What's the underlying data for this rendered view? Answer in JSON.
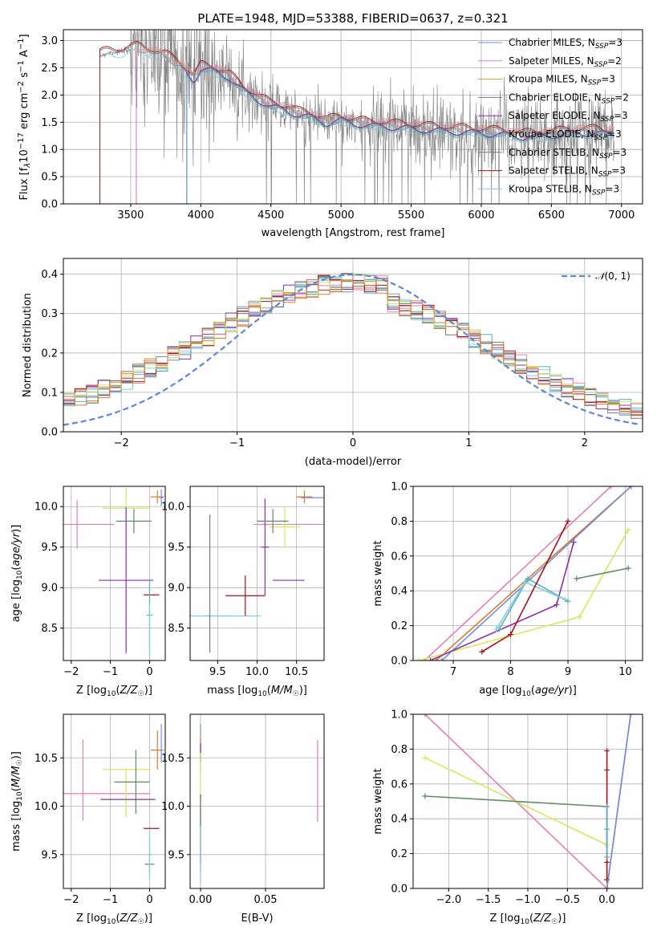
{
  "page": {
    "title": "PLATE=1948, MJD=53388, FIBERID=0637, z=0.321"
  },
  "colors": {
    "chabrier_miles": "#6f8fd8",
    "salpeter_miles": "#e37fb9",
    "kroupa_miles": "#cf9b38",
    "chabrier_elodie": "#5f8a66",
    "salpeter_elodie": "#8c2fa8",
    "kroupa_elodie": "#5ab0c4",
    "chabrier_stelib": "#777777",
    "salpeter_stelib": "#a8101a",
    "kroupa_stelib": "#7fd0d8",
    "lime": "#d7e85a",
    "orange": "#de7a33",
    "gauss": "#5b87d6",
    "data": "#808080"
  },
  "chart_data": [
    {
      "id": "spectrum",
      "type": "line",
      "title": "PLATE=1948, MJD=53388, FIBERID=0637, z=0.321",
      "xlabel": "wavelength [Angstrom, rest frame]",
      "ylabel": "Flux [f_λ 10^-17 erg cm^-2 s^-1 A^-1]",
      "xlim": [
        3020,
        7150
      ],
      "ylim": [
        0,
        3.2
      ],
      "xticks": [
        3500,
        4000,
        4500,
        5000,
        5500,
        6000,
        6500,
        7000
      ],
      "yticks": [
        0.0,
        0.5,
        1.0,
        1.5,
        2.0,
        2.5,
        3.0
      ],
      "legend_position": "top-right",
      "legend": [
        {
          "label": "Chabrier MILES, N",
          "sub": "SSP",
          "suffix": "=3",
          "color_key": "chabrier_miles"
        },
        {
          "label": "Salpeter MILES, N",
          "sub": "SSP",
          "suffix": "=2",
          "color_key": "salpeter_miles"
        },
        {
          "label": "Kroupa MILES, N",
          "sub": "SSP",
          "suffix": "=3",
          "color_key": "kroupa_miles"
        },
        {
          "label": "Chabrier ELODIE, N",
          "sub": "SSP",
          "suffix": "=2",
          "color_key": "chabrier_elodie"
        },
        {
          "label": "Salpeter ELODIE, N",
          "sub": "SSP",
          "suffix": "=3",
          "color_key": "salpeter_elodie"
        },
        {
          "label": "Kroupa ELODIE, N",
          "sub": "SSP",
          "suffix": "=3",
          "color_key": "kroupa_elodie"
        },
        {
          "label": "Chabrier STELIB, N",
          "sub": "SSP",
          "suffix": "=3",
          "color_key": "chabrier_stelib"
        },
        {
          "label": "Salpeter STELIB, N",
          "sub": "SSP",
          "suffix": "=3",
          "color_key": "salpeter_stelib"
        },
        {
          "label": "Kroupa STELIB, N",
          "sub": "SSP",
          "suffix": "=3",
          "color_key": "kroupa_stelib"
        }
      ],
      "model_continuum": [
        [
          3280,
          2.72
        ],
        [
          3350,
          2.78
        ],
        [
          3450,
          2.8
        ],
        [
          3550,
          2.85
        ],
        [
          3650,
          2.78
        ],
        [
          3750,
          2.7
        ],
        [
          3850,
          2.55
        ],
        [
          3950,
          2.3
        ],
        [
          4000,
          2.5
        ],
        [
          4100,
          2.45
        ],
        [
          4200,
          2.35
        ],
        [
          4300,
          2.1
        ],
        [
          4400,
          1.95
        ],
        [
          4500,
          1.8
        ],
        [
          4600,
          1.75
        ],
        [
          4700,
          1.65
        ],
        [
          4800,
          1.6
        ],
        [
          4900,
          1.5
        ],
        [
          5000,
          1.55
        ],
        [
          5100,
          1.5
        ],
        [
          5200,
          1.45
        ],
        [
          5300,
          1.45
        ],
        [
          5400,
          1.42
        ],
        [
          5500,
          1.4
        ],
        [
          5600,
          1.38
        ],
        [
          5700,
          1.36
        ],
        [
          5800,
          1.35
        ],
        [
          5900,
          1.33
        ],
        [
          6000,
          1.32
        ],
        [
          6100,
          1.3
        ],
        [
          6200,
          1.28
        ],
        [
          6300,
          1.25
        ],
        [
          6400,
          1.25
        ],
        [
          6500,
          1.28
        ],
        [
          6600,
          1.3
        ],
        [
          6700,
          1.32
        ],
        [
          6800,
          1.32
        ],
        [
          6900,
          1.3
        ]
      ],
      "model_start": {
        "chabrier_miles": 3540,
        "salpeter_miles": 3540,
        "kroupa_miles": 3540,
        "chabrier_elodie": 3900,
        "salpeter_elodie": 3900,
        "kroupa_elodie": 3900,
        "chabrier_stelib": 3280,
        "salpeter_stelib": 3280,
        "kroupa_stelib": 3280
      },
      "data_range": [
        3280,
        6950
      ]
    },
    {
      "id": "residuals",
      "type": "line",
      "xlabel": "(data-model)/error",
      "ylabel": "Normed distribution",
      "xlim": [
        -2.5,
        2.5
      ],
      "ylim": [
        0,
        0.44
      ],
      "xticks": [
        -2,
        -1,
        0,
        1,
        2
      ],
      "yticks": [
        0.0,
        0.1,
        0.2,
        0.3,
        0.4
      ],
      "legend_position": "top-right",
      "gauss_label": "N(0,1)",
      "bin_width": 0.1
    },
    {
      "id": "age_vs_Z",
      "type": "scatter",
      "xlabel": "Z [log10(Z/Z☉)]",
      "ylabel": "age  [log10(age/yr)]",
      "xlim": [
        -2.2,
        0.4
      ],
      "ylim": [
        8.1,
        10.25
      ],
      "xticks": [
        -2,
        -1,
        0
      ],
      "yticks": [
        8.5,
        9.0,
        9.5,
        10.0
      ],
      "points": [
        {
          "x": -1.85,
          "xerr": 0.95,
          "y": 9.78,
          "yerr": 0.3,
          "color_key": "salpeter_miles"
        },
        {
          "x": -0.6,
          "xerr": 0.6,
          "y": 9.98,
          "yerr": 0.25,
          "color_key": "lime"
        },
        {
          "x": -0.4,
          "xerr": 0.45,
          "y": 9.82,
          "yerr": 0.15,
          "color_key": "chabrier_elodie"
        },
        {
          "x": -0.6,
          "xerr": 0.7,
          "y": 9.09,
          "yerr": 0.9,
          "color_key": "salpeter_elodie"
        },
        {
          "x": 0.2,
          "xerr": 0.17,
          "y": 10.12,
          "yerr": 0.08,
          "color_key": "orange"
        },
        {
          "x": 0.3,
          "xerr": 0.05,
          "y": 10.11,
          "yerr": 0.1,
          "color_key": "chabrier_miles"
        },
        {
          "x": 0.05,
          "xerr": 0.2,
          "y": 8.91,
          "yerr": 0.0,
          "color_key": "salpeter_stelib"
        },
        {
          "x": 0.0,
          "xerr": 0.08,
          "y": 8.66,
          "yerr": 0.45,
          "color_key": "kroupa_elodie"
        },
        {
          "x": 0.0,
          "xerr": 0.02,
          "y": 8.3,
          "yerr": 0.5,
          "color_key": "kroupa_stelib"
        }
      ]
    },
    {
      "id": "age_vs_mass",
      "type": "scatter",
      "xlabel": "mass [log10(M/M☉)]",
      "ylabel": "",
      "xlim": [
        9.15,
        10.85
      ],
      "ylim": [
        8.1,
        10.25
      ],
      "xticks": [
        9.5,
        10.0,
        10.5
      ],
      "yticks": [
        8.5,
        9.0,
        9.5,
        10.0
      ],
      "points": [
        {
          "x": 9.5,
          "xerr": 0.15,
          "y": 8.65,
          "yerr": 0.0,
          "color_key": "kroupa_elodie"
        },
        {
          "x": 9.6,
          "xerr": 0.45,
          "y": 8.65,
          "yerr": 0.0,
          "color_key": "kroupa_stelib"
        },
        {
          "x": 9.4,
          "xerr": 0.0,
          "y": 9.05,
          "yerr": 0.85,
          "color_key": "chabrier_stelib"
        },
        {
          "x": 9.85,
          "xerr": 0.25,
          "y": 8.9,
          "yerr": 0.25,
          "color_key": "salpeter_stelib"
        },
        {
          "x": 10.4,
          "xerr": 0.45,
          "y": 9.78,
          "yerr": 0.0,
          "color_key": "salpeter_miles"
        },
        {
          "x": 10.1,
          "xerr": 0.05,
          "y": 9.5,
          "yerr": 0.6,
          "color_key": "salpeter_elodie"
        },
        {
          "x": 10.4,
          "xerr": 0.2,
          "y": 9.09,
          "yerr": 0.0,
          "color_key": "salpeter_elodie"
        },
        {
          "x": 10.35,
          "xerr": 0.2,
          "y": 9.75,
          "yerr": 0.25,
          "color_key": "lime"
        },
        {
          "x": 10.2,
          "xerr": 0.2,
          "y": 9.82,
          "yerr": 0.15,
          "color_key": "chabrier_elodie"
        },
        {
          "x": 10.6,
          "xerr": 0.1,
          "y": 10.12,
          "yerr": 0.08,
          "color_key": "orange"
        },
        {
          "x": 10.7,
          "xerr": 0.15,
          "y": 10.11,
          "yerr": 0.0,
          "color_key": "chabrier_miles"
        }
      ]
    },
    {
      "id": "mw_vs_age",
      "type": "line",
      "xlabel": "age  [log10(age/yr)]",
      "ylabel": "mass weight",
      "xlim": [
        6.3,
        10.3
      ],
      "ylim": [
        0,
        1.0
      ],
      "xticks": [
        7,
        8,
        9,
        10
      ],
      "yticks": [
        0.0,
        0.2,
        0.4,
        0.6,
        0.8,
        1.0
      ],
      "series": [
        {
          "color_key": "salpeter_miles",
          "x": [
            6.5,
            9.75
          ],
          "y": [
            0.0,
            1.0
          ]
        },
        {
          "color_key": "orange",
          "x": [
            6.7,
            10.1
          ],
          "y": [
            0.0,
            1.0
          ]
        },
        {
          "color_key": "chabrier_miles",
          "x": [
            6.8,
            10.1
          ],
          "y": [
            0.0,
            1.0
          ]
        },
        {
          "color_key": "lime",
          "x": [
            6.4,
            9.2,
            10.05
          ],
          "y": [
            0.0,
            0.25,
            0.75
          ]
        },
        {
          "color_key": "chabrier_elodie",
          "x": [
            9.15,
            10.05
          ],
          "y": [
            0.47,
            0.53
          ]
        },
        {
          "color_key": "salpeter_elodie",
          "x": [
            6.6,
            8.8,
            9.1
          ],
          "y": [
            0.0,
            0.32,
            0.68
          ]
        },
        {
          "color_key": "kroupa_elodie",
          "x": [
            7.8,
            8.3,
            9.0
          ],
          "y": [
            0.18,
            0.47,
            0.34
          ]
        },
        {
          "color_key": "kroupa_stelib",
          "x": [
            7.75,
            8.25,
            8.95
          ],
          "y": [
            0.18,
            0.45,
            0.35
          ]
        },
        {
          "color_key": "salpeter_stelib",
          "x": [
            7.5,
            8.0,
            9.0
          ],
          "y": [
            0.05,
            0.15,
            0.8
          ]
        }
      ]
    },
    {
      "id": "mass_vs_Z",
      "type": "scatter",
      "xlabel": "Z [log10(Z/Z☉)]",
      "ylabel": "mass [log10(M/M☉)]",
      "xlim": [
        -2.2,
        0.4
      ],
      "ylim": [
        9.15,
        10.95
      ],
      "xticks": [
        -2,
        -1,
        0
      ],
      "yticks": [
        9.5,
        10.0,
        10.5
      ],
      "points": [
        {
          "x": -1.15,
          "xerr": 1.15,
          "y": 10.13,
          "yerr": 0.0,
          "color_key": "salpeter_miles"
        },
        {
          "x": -1.7,
          "xerr": 0.0,
          "y": 10.27,
          "yerr": 0.42,
          "color_key": "salpeter_miles"
        },
        {
          "x": -0.6,
          "xerr": 0.6,
          "y": 10.38,
          "yerr": 0.0,
          "color_key": "lime"
        },
        {
          "x": -0.6,
          "xerr": 0.0,
          "y": 10.14,
          "yerr": 0.25,
          "color_key": "lime"
        },
        {
          "x": -0.45,
          "xerr": 0.45,
          "y": 10.25,
          "yerr": 0.0,
          "color_key": "chabrier_elodie"
        },
        {
          "x": -0.35,
          "xerr": 0.0,
          "y": 10.25,
          "yerr": 0.33,
          "color_key": "chabrier_elodie"
        },
        {
          "x": -0.55,
          "xerr": 0.7,
          "y": 10.07,
          "yerr": 0.0,
          "color_key": "salpeter_elodie"
        },
        {
          "x": 0.2,
          "xerr": 0.17,
          "y": 10.58,
          "yerr": 0.2,
          "color_key": "orange"
        },
        {
          "x": 0.3,
          "xerr": 0.0,
          "y": 10.65,
          "yerr": 0.2,
          "color_key": "chabrier_miles"
        },
        {
          "x": 0.05,
          "xerr": 0.2,
          "y": 9.77,
          "yerr": 0.0,
          "color_key": "salpeter_stelib"
        },
        {
          "x": 0.0,
          "xerr": 0.12,
          "y": 9.4,
          "yerr": 0.0,
          "color_key": "chabrier_stelib"
        },
        {
          "x": 0.0,
          "xerr": 0.0,
          "y": 9.4,
          "yerr": 0.1,
          "color_key": "kroupa_elodie"
        },
        {
          "x": 0.0,
          "xerr": 0.05,
          "y": 9.5,
          "yerr": 0.25,
          "color_key": "kroupa_stelib"
        }
      ]
    },
    {
      "id": "mass_vs_EBV",
      "type": "scatter",
      "xlabel": "E(B-V)",
      "ylabel": "",
      "xlim": [
        -0.008,
        0.095
      ],
      "ylim": [
        9.15,
        10.95
      ],
      "xticks": [
        0.0,
        0.05
      ],
      "yticks": [
        9.5,
        10.0,
        10.5
      ],
      "points": [
        {
          "x": 0.09,
          "xerr": 0.0,
          "y": 10.26,
          "yerr": 0.42,
          "color_key": "salpeter_miles"
        },
        {
          "x": 0.0,
          "xerr": 0.0,
          "y": 10.65,
          "yerr": 0.2,
          "color_key": "chabrier_miles"
        },
        {
          "x": 0.0,
          "xerr": 0.0,
          "y": 10.58,
          "yerr": 0.12,
          "color_key": "orange"
        },
        {
          "x": 0.0,
          "xerr": 0.0,
          "y": 10.5,
          "yerr": 0.15,
          "color_key": "salpeter_elodie"
        },
        {
          "x": 0.0,
          "xerr": 0.0,
          "y": 10.3,
          "yerr": 0.25,
          "color_key": "lime"
        },
        {
          "x": 0.0,
          "xerr": 0.0,
          "y": 9.77,
          "yerr": 0.35,
          "color_key": "salpeter_stelib"
        },
        {
          "x": 0.0,
          "xerr": 0.0,
          "y": 9.7,
          "yerr": 0.4,
          "color_key": "chabrier_elodie"
        },
        {
          "x": 0.0,
          "xerr": 0.0,
          "y": 9.5,
          "yerr": 0.3,
          "color_key": "kroupa_stelib"
        }
      ]
    },
    {
      "id": "mw_vs_Z",
      "type": "line",
      "xlabel": "Z [log10(Z/Z☉)]",
      "ylabel": "mass weight",
      "xlim": [
        -2.45,
        0.45
      ],
      "ylim": [
        0,
        1.0
      ],
      "xticks": [
        -2.0,
        -1.5,
        -1.0,
        -0.5,
        0.0
      ],
      "yticks": [
        0.0,
        0.2,
        0.4,
        0.6,
        0.8,
        1.0
      ],
      "series": [
        {
          "color_key": "salpeter_miles",
          "x": [
            -2.3,
            0.0
          ],
          "y": [
            1.0,
            0.0
          ]
        },
        {
          "color_key": "lime",
          "x": [
            -2.3,
            0.0,
            0.0
          ],
          "y": [
            0.75,
            0.25,
            0.0
          ]
        },
        {
          "color_key": "chabrier_elodie",
          "x": [
            -2.3,
            0.0
          ],
          "y": [
            0.53,
            0.47
          ]
        },
        {
          "color_key": "salpeter_stelib",
          "x": [
            0.0,
            0.0,
            0.0,
            0.0
          ],
          "y": [
            0.05,
            0.15,
            0.68,
            0.79
          ]
        },
        {
          "color_key": "kroupa_elodie",
          "x": [
            0.0,
            0.0,
            0.0
          ],
          "y": [
            0.18,
            0.34,
            0.47
          ]
        },
        {
          "color_key": "orange",
          "x": [
            0.0,
            0.3
          ],
          "y": [
            0.0,
            1.0
          ]
        },
        {
          "color_key": "chabrier_miles",
          "x": [
            0.0,
            0.3
          ],
          "y": [
            0.0,
            1.0
          ]
        }
      ]
    }
  ]
}
